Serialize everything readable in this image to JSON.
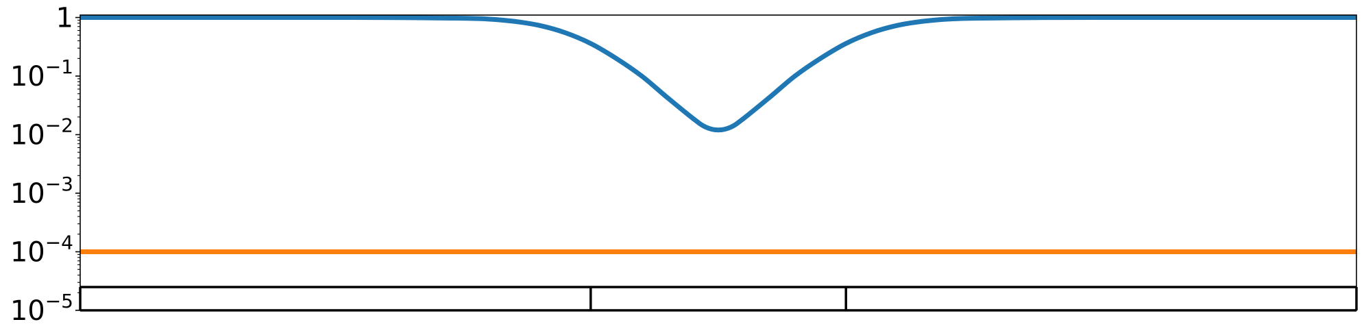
{
  "chart_data": {
    "type": "line",
    "title": "",
    "xlabel": "",
    "ylabel": "",
    "x_range": [
      0,
      1
    ],
    "y_scale": "log",
    "ylim": [
      1e-05,
      1.1
    ],
    "y_ticks": [
      {
        "value": 1,
        "base": "1",
        "exp": ""
      },
      {
        "value": 0.1,
        "base": "10",
        "exp": "−1"
      },
      {
        "value": 0.01,
        "base": "10",
        "exp": "−2"
      },
      {
        "value": 0.001,
        "base": "10",
        "exp": "−3"
      },
      {
        "value": 0.0001,
        "base": "10",
        "exp": "−4"
      },
      {
        "value": 1e-05,
        "base": "10",
        "exp": "−5"
      }
    ],
    "x_tick_labels_visible": false,
    "grid": false,
    "legend": "none",
    "series": [
      {
        "color": "#1f77b4",
        "x": [
          0,
          0.1,
          0.2,
          0.25,
          0.3,
          0.32,
          0.34,
          0.36,
          0.38,
          0.4,
          0.42,
          0.44,
          0.46,
          0.48,
          0.49,
          0.5,
          0.51,
          0.52,
          0.54,
          0.56,
          0.58,
          0.6,
          0.62,
          0.64,
          0.66,
          0.68,
          0.7,
          0.75,
          0.8,
          0.9,
          1
        ],
        "y": [
          1,
          1,
          1,
          0.995,
          0.97,
          0.94,
          0.86,
          0.73,
          0.55,
          0.36,
          0.2,
          0.1,
          0.043,
          0.019,
          0.0135,
          0.012,
          0.0135,
          0.019,
          0.043,
          0.1,
          0.2,
          0.36,
          0.55,
          0.73,
          0.86,
          0.94,
          0.97,
          0.995,
          1,
          1,
          1
        ]
      },
      {
        "color": "#ff7f0e",
        "x": [
          0,
          1
        ],
        "y": [
          0.0001,
          0.0001
        ]
      }
    ],
    "annotation_bar": {
      "segment_boundaries": [
        0,
        0.4,
        0.6,
        1
      ],
      "y_top": 2.5e-05,
      "y_bottom": 1e-05
    }
  }
}
